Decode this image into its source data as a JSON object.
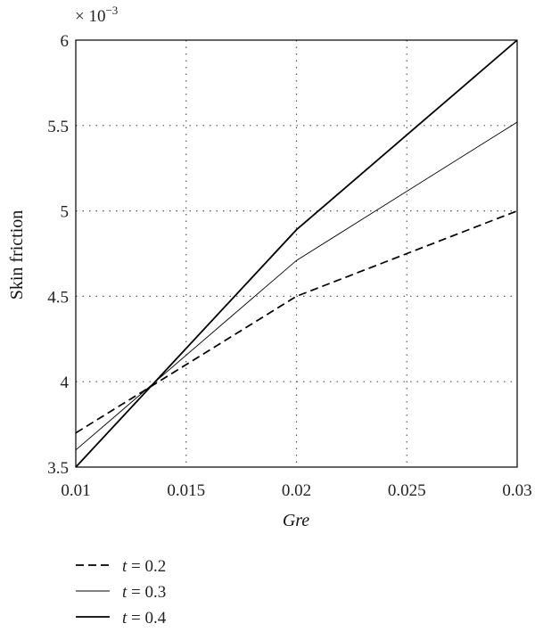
{
  "chart_data": {
    "type": "line",
    "title": "",
    "xlabel": "Gre",
    "ylabel": "Skin friction",
    "y_multiplier": "× 10",
    "y_multiplier_exponent": "−3",
    "xlim": [
      0.01,
      0.03
    ],
    "ylim": [
      3.5,
      6.0
    ],
    "x_ticks": [
      "0.01",
      "0.015",
      "0.02",
      "0.025",
      "0.03"
    ],
    "y_ticks": [
      "3.5",
      "4",
      "4.5",
      "5",
      "5.5",
      "6"
    ],
    "grid": true,
    "grid_style": "dotted",
    "legend_position": "below-left",
    "series": [
      {
        "name": "t = 0.2",
        "name_var": "t",
        "name_rest": " = 0.2",
        "line": "dashed",
        "x": [
          0.01,
          0.02,
          0.03
        ],
        "values": [
          3.7,
          4.5,
          5.0
        ]
      },
      {
        "name": "t = 0.3",
        "name_var": "t",
        "name_rest": " = 0.3",
        "line": "thin-solid",
        "x": [
          0.01,
          0.02,
          0.03
        ],
        "values": [
          3.6,
          4.71,
          5.52
        ]
      },
      {
        "name": "t = 0.4",
        "name_var": "t",
        "name_rest": " = 0.4",
        "line": "solid",
        "x": [
          0.01,
          0.02,
          0.03
        ],
        "values": [
          3.5,
          4.89,
          6.0
        ]
      }
    ]
  }
}
